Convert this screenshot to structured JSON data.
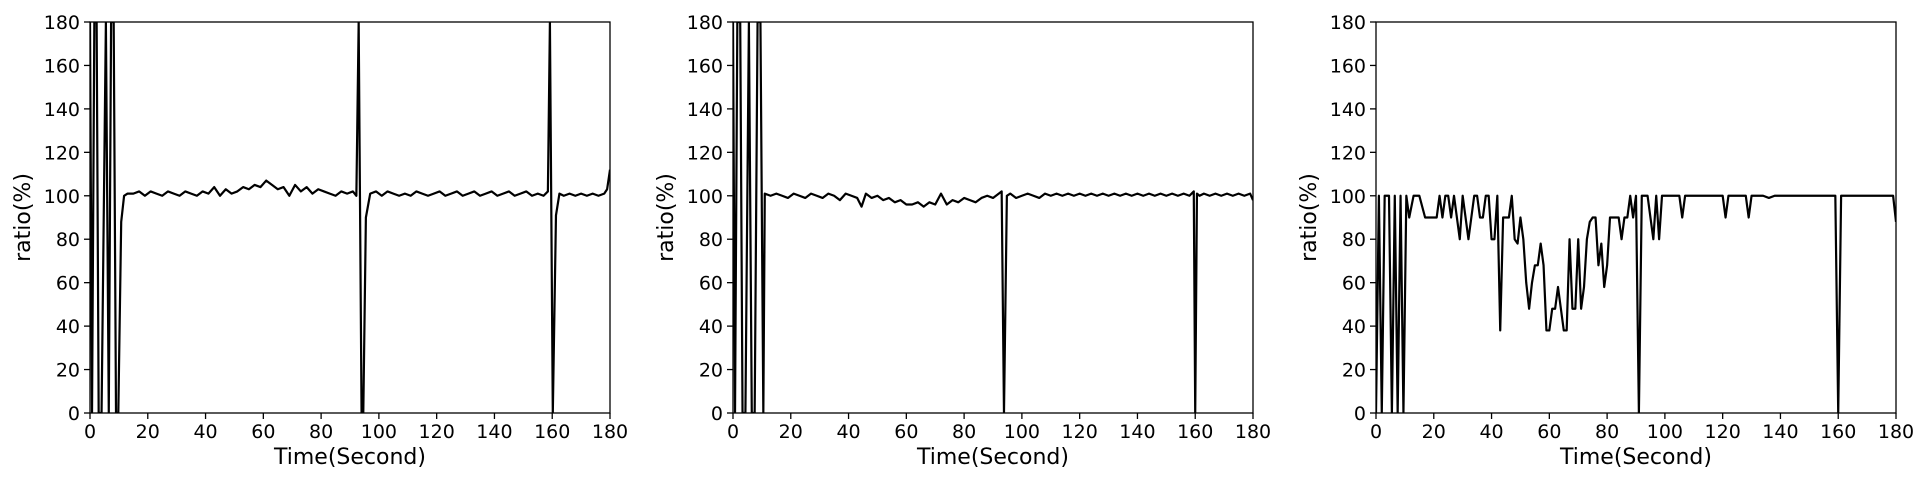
{
  "chart_data": [
    {
      "type": "line",
      "xlabel": "Time(Second)",
      "ylabel": "ratio(%)",
      "xlim": [
        0,
        180
      ],
      "ylim": [
        0,
        180
      ],
      "xticks": [
        0,
        20,
        40,
        60,
        80,
        100,
        120,
        140,
        160,
        180
      ],
      "yticks": [
        0,
        20,
        40,
        60,
        80,
        100,
        120,
        140,
        160,
        180
      ],
      "grid": false,
      "color": "#000000",
      "series": [
        {
          "x": [
            0,
            0.7,
            1.5,
            2.3,
            3,
            4,
            5.5,
            6.5,
            7.3,
            8.2,
            9,
            9.8,
            10.8,
            11.8,
            13,
            15,
            17,
            19,
            21,
            23,
            25,
            27,
            29,
            31,
            33,
            35,
            37,
            39,
            41,
            43,
            45,
            47,
            49,
            51,
            53,
            55,
            57,
            59,
            61,
            63,
            65,
            67,
            69,
            71,
            73,
            75,
            77,
            79,
            81,
            83,
            85,
            87,
            89,
            91,
            92.2,
            93,
            94,
            94.6,
            95.5,
            97,
            99,
            101,
            103,
            105,
            107,
            109,
            111,
            113,
            115,
            117,
            119,
            121,
            123,
            125,
            127,
            129,
            131,
            133,
            135,
            137,
            139,
            141,
            143,
            145,
            147,
            149,
            151,
            153,
            155,
            157,
            158.5,
            159.2,
            160.2,
            161.3,
            162.5,
            164,
            166,
            168,
            170,
            172,
            174,
            176,
            178,
            179,
            180
          ],
          "y": [
            180,
            0,
            180,
            180,
            0,
            0,
            180,
            0,
            180,
            180,
            0,
            0,
            88,
            100,
            101,
            101,
            102,
            100,
            102,
            101,
            100,
            102,
            101,
            100,
            102,
            101,
            100,
            102,
            101,
            104,
            100,
            103,
            101,
            102,
            104,
            103,
            105,
            104,
            107,
            105,
            103,
            104,
            100,
            105,
            102,
            104,
            101,
            103,
            102,
            101,
            100,
            102,
            101,
            102,
            100,
            180,
            0,
            0,
            90,
            101,
            102,
            100,
            102,
            101,
            100,
            101,
            100,
            102,
            101,
            100,
            101,
            102,
            100,
            101,
            102,
            100,
            101,
            102,
            100,
            101,
            102,
            100,
            101,
            102,
            100,
            101,
            102,
            100,
            101,
            100,
            102,
            180,
            0,
            91,
            101,
            100,
            101,
            100,
            101,
            100,
            101,
            100,
            101,
            103,
            112
          ]
        }
      ]
    },
    {
      "type": "line",
      "xlabel": "Time(Second)",
      "ylabel": "ratio(%)",
      "xlim": [
        0,
        180
      ],
      "ylim": [
        0,
        180
      ],
      "xticks": [
        0,
        20,
        40,
        60,
        80,
        100,
        120,
        140,
        160,
        180
      ],
      "yticks": [
        0,
        20,
        40,
        60,
        80,
        100,
        120,
        140,
        160,
        180
      ],
      "grid": false,
      "color": "#000000",
      "series": [
        {
          "x": [
            0,
            0.7,
            1.5,
            2.5,
            3.3,
            4.3,
            5.5,
            6.5,
            7.5,
            8.5,
            9.5,
            10.5,
            11,
            13,
            15,
            17,
            19,
            21,
            23,
            25,
            27,
            29,
            31,
            33,
            35,
            37,
            39,
            41,
            43,
            44.5,
            46,
            48,
            50,
            52,
            54,
            56,
            58,
            60,
            62,
            64,
            66,
            68,
            70,
            72,
            74,
            76,
            78,
            80,
            82,
            84,
            86,
            88,
            90,
            92,
            93,
            93.8,
            94.8,
            96,
            98,
            100,
            102,
            104,
            106,
            108,
            110,
            112,
            114,
            116,
            118,
            120,
            122,
            124,
            126,
            128,
            130,
            132,
            134,
            136,
            138,
            140,
            142,
            144,
            146,
            148,
            150,
            152,
            154,
            156,
            158,
            159.5,
            160,
            160.6,
            161.5,
            163,
            165,
            167,
            169,
            171,
            173,
            175,
            177,
            179,
            180
          ],
          "y": [
            180,
            0,
            180,
            180,
            0,
            0,
            180,
            0,
            0,
            180,
            180,
            0,
            101,
            100,
            101,
            100,
            99,
            101,
            100,
            99,
            101,
            100,
            99,
            101,
            100,
            98,
            101,
            100,
            99,
            95,
            101,
            99,
            100,
            98,
            99,
            97,
            98,
            96,
            96,
            97,
            95,
            97,
            96,
            101,
            96,
            98,
            97,
            99,
            98,
            97,
            99,
            100,
            99,
            101,
            102,
            0,
            100,
            101,
            99,
            100,
            101,
            100,
            99,
            101,
            100,
            101,
            100,
            101,
            100,
            101,
            100,
            101,
            100,
            101,
            100,
            101,
            100,
            101,
            100,
            101,
            100,
            101,
            100,
            101,
            100,
            101,
            100,
            101,
            100,
            102,
            0,
            101,
            100,
            101,
            100,
            101,
            100,
            101,
            100,
            101,
            100,
            101,
            98
          ]
        }
      ]
    },
    {
      "type": "line",
      "xlabel": "Time(Second)",
      "ylabel": "ratio(%)",
      "xlim": [
        0,
        180
      ],
      "ylim": [
        0,
        180
      ],
      "xticks": [
        0,
        20,
        40,
        60,
        80,
        100,
        120,
        140,
        160,
        180
      ],
      "yticks": [
        0,
        20,
        40,
        60,
        80,
        100,
        120,
        140,
        160,
        180
      ],
      "grid": false,
      "color": "#000000",
      "series": [
        {
          "x": [
            0,
            1,
            2,
            3,
            4.5,
            5.5,
            6.5,
            7.5,
            8.5,
            9.5,
            10.5,
            11.5,
            13,
            15,
            17,
            19,
            21,
            22,
            23,
            24,
            25,
            26,
            27,
            28,
            29,
            30,
            31,
            32,
            33,
            34,
            35,
            36,
            37,
            38,
            39,
            40,
            41,
            42,
            43,
            44,
            45,
            46,
            47,
            48,
            49,
            50,
            51,
            52,
            53,
            54,
            55,
            56,
            57,
            58,
            59,
            60,
            61,
            62,
            63,
            64,
            65,
            66,
            67,
            68,
            69,
            70,
            71,
            72,
            73,
            74,
            75,
            76,
            77,
            78,
            79,
            80,
            81,
            82,
            83,
            84,
            85,
            86,
            87,
            88,
            89,
            90,
            91,
            92,
            93,
            94,
            95,
            96,
            97,
            98,
            99,
            100,
            101,
            102,
            103,
            104,
            105,
            106,
            107,
            108,
            109,
            110,
            111,
            112,
            113,
            114,
            115,
            116,
            117,
            118,
            119,
            120,
            121,
            122,
            123,
            124,
            125,
            126,
            127,
            128,
            129,
            130,
            132,
            134,
            136,
            138,
            140,
            142,
            144,
            146,
            148,
            150,
            152,
            154,
            156,
            158,
            159,
            160,
            161,
            162,
            164,
            166,
            168,
            170,
            172,
            174,
            176,
            178,
            179,
            180
          ],
          "y": [
            0,
            100,
            0,
            100,
            100,
            0,
            100,
            0,
            100,
            0,
            100,
            90,
            100,
            100,
            90,
            90,
            90,
            100,
            90,
            100,
            100,
            90,
            100,
            90,
            80,
            100,
            90,
            80,
            90,
            100,
            100,
            90,
            90,
            100,
            100,
            80,
            80,
            100,
            38,
            90,
            90,
            90,
            100,
            80,
            78,
            90,
            80,
            60,
            48,
            60,
            68,
            68,
            78,
            68,
            38,
            38,
            48,
            48,
            58,
            48,
            38,
            38,
            80,
            48,
            48,
            80,
            48,
            58,
            80,
            88,
            90,
            90,
            68,
            78,
            58,
            68,
            90,
            90,
            90,
            90,
            80,
            90,
            90,
            100,
            90,
            100,
            0,
            100,
            100,
            100,
            90,
            80,
            100,
            80,
            100,
            100,
            100,
            100,
            100,
            100,
            100,
            90,
            100,
            100,
            100,
            100,
            100,
            100,
            100,
            100,
            100,
            100,
            100,
            100,
            100,
            100,
            90,
            100,
            100,
            100,
            100,
            100,
            100,
            100,
            90,
            100,
            100,
            100,
            99,
            100,
            100,
            100,
            100,
            100,
            100,
            100,
            100,
            100,
            100,
            100,
            100,
            0,
            100,
            100,
            100,
            100,
            100,
            100,
            100,
            100,
            100,
            100,
            100,
            88
          ]
        }
      ]
    }
  ]
}
